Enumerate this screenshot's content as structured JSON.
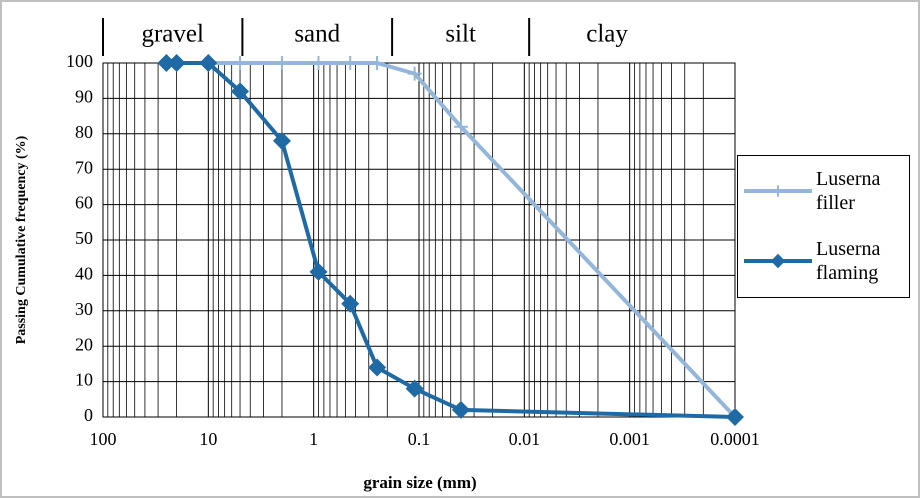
{
  "chart_data": {
    "type": "line",
    "x_label": "grain size  (mm)",
    "y_label": "Passing Cumulative frequency (%)",
    "xscale": "log",
    "xlim": [
      100,
      0.0001
    ],
    "xticks": [
      100,
      10,
      1,
      0.1,
      0.01,
      0.001,
      0.0001
    ],
    "ylim": [
      0,
      100
    ],
    "yticks": [
      0,
      10,
      20,
      30,
      40,
      50,
      60,
      70,
      80,
      90,
      100
    ],
    "grid": true,
    "minor_grid": true,
    "legend": "right",
    "zones": [
      {
        "name": "gravel",
        "start": 100
      },
      {
        "name": "sand",
        "start": 4.75
      },
      {
        "name": "silt",
        "start": 0.18
      },
      {
        "name": "clay",
        "start": 0.009
      }
    ],
    "series": [
      {
        "name": "Luserna filler",
        "color": "#94b6d9",
        "marker": "plus",
        "x": [
          10,
          5,
          2,
          0.9,
          0.45,
          0.25,
          0.11,
          0.04,
          0.0001
        ],
        "values": [
          100,
          100,
          100,
          100,
          100,
          100,
          97,
          82,
          0
        ]
      },
      {
        "name": "Luserna flaming",
        "color": "#1f6aa5",
        "marker": "diamond",
        "x": [
          25,
          20,
          10,
          5,
          2,
          0.9,
          0.45,
          0.25,
          0.11,
          0.04,
          0.0001
        ],
        "values": [
          100,
          100,
          100,
          92,
          78,
          41,
          32,
          14,
          8,
          2,
          0
        ]
      }
    ]
  }
}
